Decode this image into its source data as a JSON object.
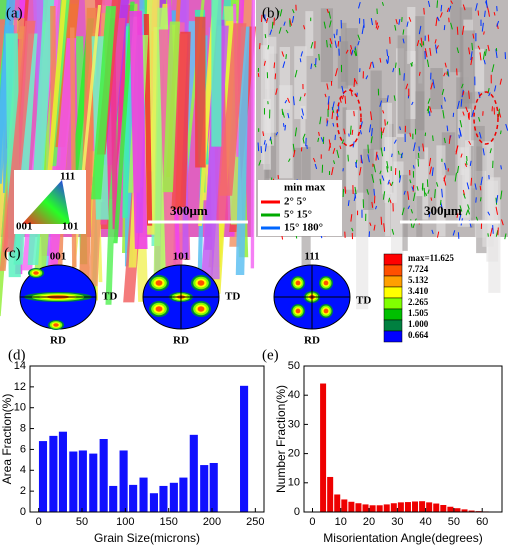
{
  "panels": {
    "a": {
      "label": "(a)",
      "ipf": [
        "111",
        "001",
        "101"
      ],
      "scale": "300μm"
    },
    "b": {
      "label": "(b)",
      "legend_header": "min max",
      "legend": [
        "2°  5°",
        "5°  15°",
        "15° 180°"
      ],
      "scale": "300μm"
    },
    "c": {
      "label": "(c)",
      "poles": [
        "001",
        "101",
        "111"
      ],
      "td": "TD",
      "rd": "RD",
      "colorbar": [
        "max=11.625",
        "7.724",
        "5.132",
        "3.410",
        "2.265",
        "1.505",
        "1.000",
        "0.664"
      ]
    }
  },
  "chart_data": [
    {
      "type": "bar",
      "panel_label": "(d)",
      "xlabel": "Grain Size(microns)",
      "ylabel": "Area Fraction(%)",
      "x": [
        5,
        17,
        28,
        40,
        51,
        63,
        75,
        86,
        98,
        109,
        121,
        133,
        144,
        156,
        167,
        179,
        191,
        202,
        237
      ],
      "values": [
        6.8,
        7.3,
        7.7,
        5.8,
        5.9,
        5.6,
        7.0,
        2.5,
        5.9,
        2.6,
        3.3,
        1.8,
        2.5,
        2.8,
        3.3,
        7.4,
        4.5,
        4.7,
        12.1
      ],
      "color": "#1010ff",
      "xlim": [
        -10,
        260
      ],
      "xticks": [
        0,
        50,
        100,
        150,
        200,
        250
      ],
      "ylim": [
        0,
        14
      ],
      "yticks": [
        0,
        2,
        4,
        6,
        8,
        10,
        12,
        14
      ]
    },
    {
      "type": "bar",
      "panel_label": "(e)",
      "xlabel": "Misorientation Angle(degrees)",
      "ylabel": "Number Fraction(%)",
      "x": [
        3.75,
        6.25,
        8.75,
        11.25,
        13.75,
        16.25,
        18.75,
        21.25,
        23.75,
        26.25,
        28.75,
        31.25,
        33.75,
        36.25,
        38.75,
        41.25,
        43.75,
        46.25,
        48.75,
        51.25,
        53.75,
        56.25,
        58.75,
        61.25
      ],
      "values": [
        44,
        12,
        6,
        4.3,
        3.5,
        3.0,
        2.6,
        2.3,
        2.3,
        2.6,
        3.0,
        3.3,
        3.4,
        3.6,
        3.7,
        3.3,
        2.9,
        2.4,
        1.8,
        1.3,
        0.9,
        0.5,
        0.3,
        0.2
      ],
      "color": "#ee0000",
      "xlim": [
        -3,
        67
      ],
      "xticks": [
        0,
        10,
        20,
        30,
        40,
        50,
        60
      ],
      "ylim": [
        0,
        50
      ],
      "yticks": [
        0,
        10,
        20,
        30,
        40,
        50
      ]
    }
  ]
}
